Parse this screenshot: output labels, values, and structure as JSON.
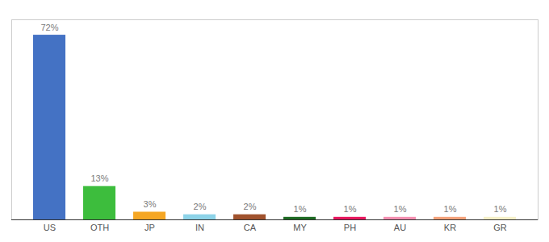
{
  "chart_data": {
    "type": "bar",
    "categories": [
      "US",
      "OTH",
      "JP",
      "IN",
      "CA",
      "MY",
      "PH",
      "AU",
      "KR",
      "GR"
    ],
    "values": [
      72,
      13,
      3,
      2,
      2,
      1,
      1,
      1,
      1,
      1
    ],
    "value_labels": [
      "72%",
      "13%",
      "3%",
      "2%",
      "2%",
      "1%",
      "1%",
      "1%",
      "1%",
      "1%"
    ],
    "colors": [
      "#4472C4",
      "#3DBD3D",
      "#F5A623",
      "#8DD3E8",
      "#A0522D",
      "#1E6B23",
      "#E8175E",
      "#F48FB1",
      "#F4A27A",
      "#F5F0C8"
    ],
    "ylim": [
      0,
      78
    ],
    "data_labels": true,
    "tick_labels": "x"
  }
}
